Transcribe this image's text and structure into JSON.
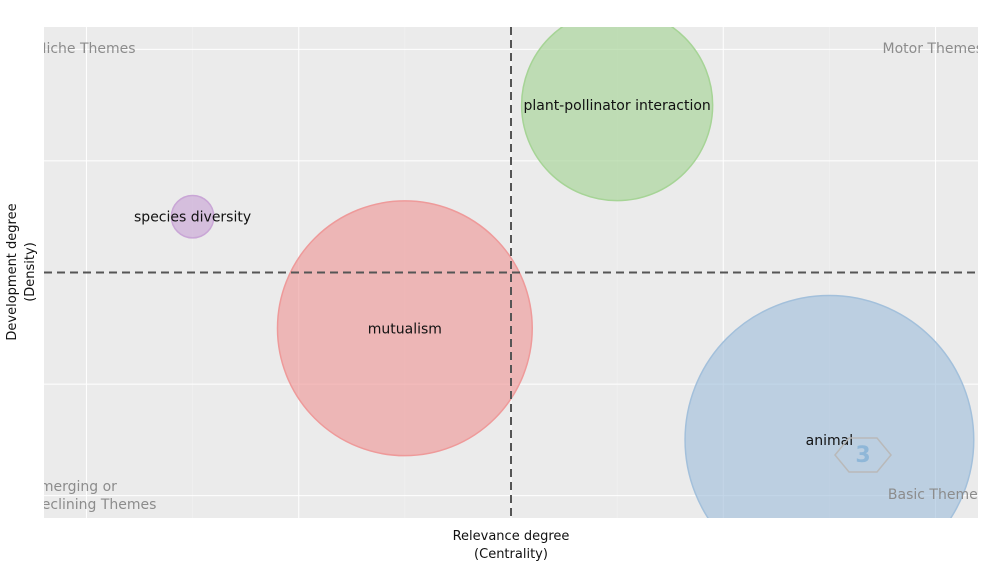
{
  "chart_data": {
    "type": "scatter",
    "title": "",
    "xlabel": [
      "Relevance degree",
      "(Centrality)"
    ],
    "ylabel": [
      "Development degree",
      "(Density)"
    ],
    "grid": true,
    "background": "#ebebeb",
    "xlim": [
      -2.2,
      2.2
    ],
    "ylim": [
      -2.2,
      2.2
    ],
    "x_reference": 0,
    "y_reference": 0,
    "quadrant_labels": {
      "top_left": [
        "Niche Themes"
      ],
      "top_right": [
        "Motor Themes"
      ],
      "bottom_left": [
        "Emerging or",
        "Declining Themes"
      ],
      "bottom_right": [
        "Basic Themes"
      ]
    },
    "series": [
      {
        "name": "plant-pollinator interaction",
        "x": 0.5,
        "y": 1.5,
        "size": 0.45,
        "color": "#a6d496"
      },
      {
        "name": "species diversity",
        "x": -1.5,
        "y": 0.5,
        "size": 0.1,
        "color": "#c9a6d6"
      },
      {
        "name": "mutualism",
        "x": -0.5,
        "y": -0.5,
        "size": 0.6,
        "color": "#ee9a9a"
      },
      {
        "name": "animal",
        "x": 1.5,
        "y": -1.5,
        "size": 0.68,
        "color": "#a3c0db"
      }
    ]
  },
  "watermark": {
    "text": "3"
  }
}
